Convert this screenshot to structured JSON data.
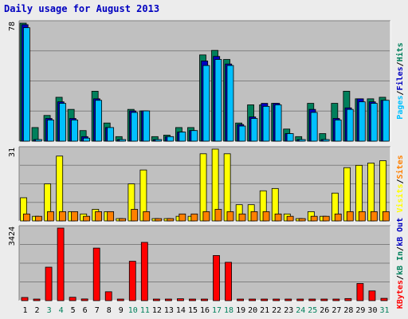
{
  "chart_data": {
    "type": "bar",
    "title": "Daily usage for August 2013",
    "colors": {
      "background": "#ececec",
      "plot": "#c0c0c0",
      "title": "#0000c0",
      "hits": "#00805c",
      "files": "#0000c0",
      "pages": "#00c0ff",
      "visits": "#ffff00",
      "sites": "#ff8000",
      "kb_in": "#00805c",
      "kb_out": "#0000c0",
      "kb_f": "#ff0000",
      "weekend_day": "#00805c",
      "weekday": "#000000"
    },
    "days": [
      "1",
      "2",
      "3",
      "4",
      "5",
      "6",
      "7",
      "8",
      "9",
      "10",
      "11",
      "12",
      "13",
      "14",
      "15",
      "16",
      "17",
      "18",
      "19",
      "20",
      "21",
      "22",
      "23",
      "24",
      "25",
      "26",
      "27",
      "28",
      "29",
      "30",
      "31"
    ],
    "weekend_days": [
      "3",
      "4",
      "10",
      "11",
      "17",
      "18",
      "24",
      "25",
      "31"
    ],
    "panels": [
      {
        "id": "hits",
        "max_label": "78",
        "ymax": 78,
        "legend": [
          {
            "text": "Pages",
            "color": "#00c0ff"
          },
          {
            "text": "/",
            "color": "#000000"
          },
          {
            "text": "Files",
            "color": "#0000c0"
          },
          {
            "text": "/",
            "color": "#000000"
          },
          {
            "text": "Hits",
            "color": "#00805c"
          }
        ],
        "series": [
          {
            "name": "Hits",
            "color": "#00805c",
            "values": [
              78,
              9,
              17,
              29,
              21,
              7,
              33,
              12,
              3,
              21,
              20,
              3,
              4,
              9,
              9,
              57,
              60,
              54,
              12,
              24,
              24,
              25,
              8,
              3,
              25,
              5,
              25,
              33,
              28,
              28,
              29
            ]
          },
          {
            "name": "Files",
            "color": "#0000c0",
            "values": [
              77,
              1,
              15,
              26,
              15,
              3,
              28,
              9,
              0,
              20,
              20,
              0,
              3,
              6,
              7,
              53,
              56,
              51,
              11,
              16,
              25,
              25,
              5,
              0,
              21,
              1,
              15,
              22,
              28,
              26,
              27
            ]
          },
          {
            "name": "Pages",
            "color": "#00c0ff",
            "values": [
              75,
              1,
              14,
              25,
              14,
              2,
              27,
              9,
              0,
              19,
              20,
              0,
              3,
              6,
              7,
              50,
              54,
              50,
              10,
              15,
              23,
              24,
              5,
              0,
              19,
              1,
              14,
              21,
              26,
              25,
              27
            ]
          }
        ]
      },
      {
        "id": "visits",
        "max_label": "31",
        "ymax": 31,
        "legend": [
          {
            "text": "Visits",
            "color": "#ffff00"
          },
          {
            "text": "/",
            "color": "#000000"
          },
          {
            "text": "Sites",
            "color": "#ff8000"
          }
        ],
        "series": [
          {
            "name": "Visits",
            "color": "#ffff00",
            "values": [
              10,
              2,
              16,
              28,
              4,
              3,
              5,
              4,
              1,
              16,
              22,
              1,
              1,
              2,
              2,
              29,
              31,
              29,
              7,
              7,
              13,
              14,
              3,
              1,
              4,
              2,
              12,
              23,
              24,
              25,
              26
            ]
          },
          {
            "name": "Sites",
            "color": "#ff8000",
            "values": [
              3,
              2,
              4,
              4,
              4,
              2,
              4,
              4,
              1,
              5,
              4,
              1,
              1,
              3,
              3,
              4,
              5,
              4,
              3,
              4,
              4,
              3,
              2,
              1,
              2,
              2,
              3,
              4,
              4,
              4,
              4
            ]
          }
        ]
      },
      {
        "id": "kbytes",
        "max_label": "3424",
        "ymax": 3424,
        "legend": [
          {
            "text": "KBytes",
            "color": "#ff0000"
          },
          {
            "text": "/",
            "color": "#000000"
          },
          {
            "text": "kB In",
            "color": "#00805c"
          },
          {
            "text": "/",
            "color": "#000000"
          },
          {
            "text": "kB Out",
            "color": "#0000c0"
          }
        ],
        "series": [
          {
            "name": "KBytes",
            "color": "#ff0000",
            "values": [
              150,
              60,
              1580,
              3424,
              160,
              80,
              2480,
              420,
              60,
              1860,
              2750,
              30,
              30,
              90,
              40,
              40,
              2130,
              1810,
              20,
              60,
              40,
              40,
              50,
              40,
              60,
              30,
              30,
              100,
              810,
              460,
              110
            ]
          }
        ]
      }
    ]
  }
}
